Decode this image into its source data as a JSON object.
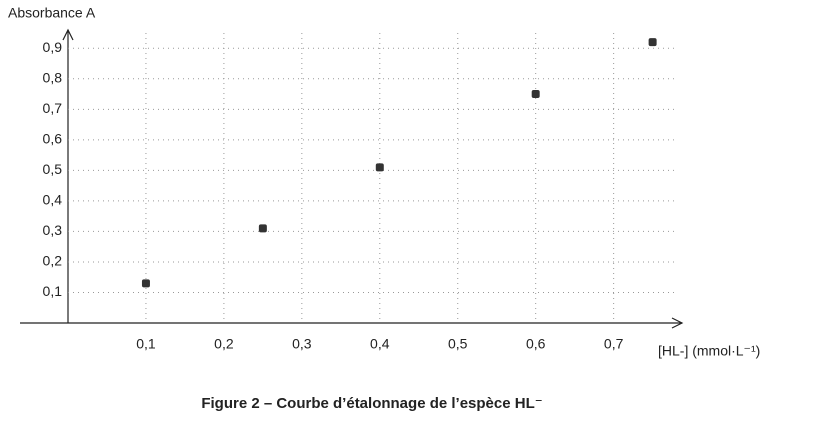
{
  "chart_data": {
    "type": "scatter",
    "y_label": "Absorbance A",
    "x_label": "[HL-] (mmol·L⁻¹)",
    "caption": "Figure 2 – Courbe d’étalonnage de l’espèce HL⁻",
    "x": [
      0.1,
      0.25,
      0.4,
      0.6,
      0.75
    ],
    "values": [
      0.13,
      0.31,
      0.51,
      0.75,
      0.92
    ],
    "color": "#333333",
    "grid": true,
    "xlim": [
      0,
      0.78
    ],
    "ylim": [
      0,
      0.95
    ],
    "xticks": [
      {
        "value": 0.1,
        "label": "0,1"
      },
      {
        "value": 0.2,
        "label": "0,2"
      },
      {
        "value": 0.3,
        "label": "0,3"
      },
      {
        "value": 0.4,
        "label": "0,4"
      },
      {
        "value": 0.5,
        "label": "0,5"
      },
      {
        "value": 0.6,
        "label": "0,6"
      },
      {
        "value": 0.7,
        "label": "0,7"
      }
    ],
    "yticks": [
      {
        "value": 0.1,
        "label": "0,1"
      },
      {
        "value": 0.2,
        "label": "0,2"
      },
      {
        "value": 0.3,
        "label": "0,3"
      },
      {
        "value": 0.4,
        "label": "0,4"
      },
      {
        "value": 0.5,
        "label": "0,5"
      },
      {
        "value": 0.6,
        "label": "0,6"
      },
      {
        "value": 0.7,
        "label": "0,7"
      },
      {
        "value": 0.8,
        "label": "0,8"
      },
      {
        "value": 0.9,
        "label": "0,9"
      }
    ]
  }
}
